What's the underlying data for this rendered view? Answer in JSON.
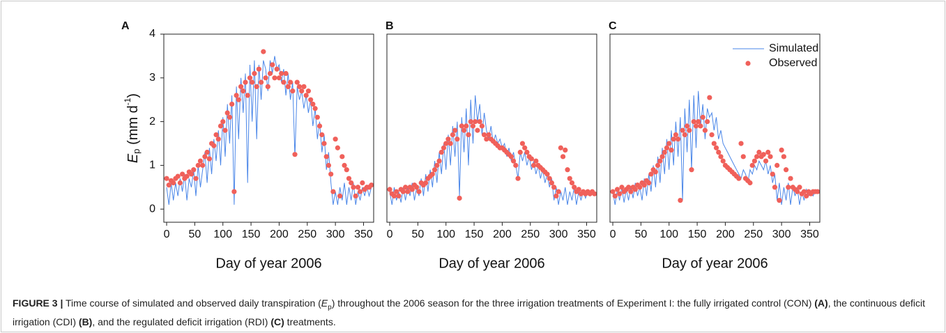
{
  "chart_data": [
    {
      "type": "line",
      "panel_label": "A",
      "xlabel": "Day of year 2006",
      "ylabel": [
        "E",
        "p",
        " (mm d",
        "-1",
        ")"
      ],
      "xlim": [
        -5,
        368
      ],
      "xticks": [
        0,
        50,
        100,
        150,
        200,
        250,
        300,
        350
      ],
      "ylim": [
        -0.3,
        4
      ],
      "yticks": [
        0,
        1,
        2,
        3,
        4
      ],
      "x": [
        0,
        4,
        8,
        12,
        16,
        20,
        24,
        28,
        32,
        36,
        40,
        44,
        48,
        52,
        56,
        60,
        64,
        68,
        72,
        76,
        80,
        84,
        88,
        92,
        96,
        100,
        104,
        108,
        112,
        116,
        120,
        124,
        128,
        132,
        136,
        140,
        144,
        148,
        152,
        156,
        160,
        164,
        168,
        172,
        176,
        180,
        184,
        188,
        192,
        196,
        200,
        204,
        208,
        212,
        216,
        220,
        224,
        228,
        232,
        236,
        240,
        244,
        248,
        252,
        256,
        260,
        264,
        268,
        272,
        276,
        280,
        284,
        288,
        292,
        296,
        300,
        304,
        308,
        312,
        316,
        320,
        324,
        328,
        332,
        336,
        340,
        344,
        348,
        352,
        356,
        360,
        364
      ],
      "series": [
        {
          "type": "line",
          "color": "#4a86e8",
          "values": [
            0.5,
            0.1,
            0.6,
            0.2,
            0.6,
            0.3,
            0.7,
            0.4,
            0.8,
            0.2,
            0.7,
            0.5,
            0.9,
            0.3,
            1.0,
            0.5,
            0.9,
            1.3,
            0.6,
            1.4,
            0.8,
            1.6,
            1.1,
            1.8,
            1.0,
            2.1,
            1.2,
            2.4,
            1.5,
            2.6,
            0.1,
            2.8,
            1.6,
            3.0,
            2.2,
            3.1,
            0.6,
            3.3,
            2.0,
            3.4,
            1.6,
            3.3,
            2.5,
            3.4,
            3.2,
            2.7,
            3.4,
            3.1,
            3.5,
            3.2,
            3.3,
            2.9,
            3.2,
            2.6,
            3.1,
            2.5,
            2.9,
            1.2,
            2.8,
            2.5,
            2.7,
            2.3,
            2.6,
            2.2,
            2.5,
            1.9,
            2.3,
            1.6,
            2.0,
            1.3,
            1.7,
            0.9,
            1.3,
            0.6,
            0.1,
            0.4,
            0.1,
            0.5,
            0.2,
            0.6,
            0.1,
            0.5,
            0.2,
            0.6,
            0.1,
            0.4,
            0.2,
            0.5,
            0.3,
            0.5,
            0.3,
            0.5
          ]
        },
        {
          "type": "scatter",
          "color": "#f0605a",
          "values": [
            0.7,
            0.55,
            0.65,
            0.6,
            0.7,
            0.75,
            0.6,
            0.8,
            0.7,
            0.75,
            0.85,
            0.8,
            0.9,
            0.7,
            1.0,
            1.1,
            1.0,
            1.2,
            1.3,
            1.15,
            1.5,
            1.45,
            1.7,
            1.6,
            1.9,
            2.0,
            1.8,
            2.2,
            2.1,
            2.4,
            0.4,
            2.6,
            2.5,
            2.8,
            2.7,
            2.9,
            2.6,
            3.0,
            2.9,
            3.1,
            2.8,
            3.2,
            2.9,
            3.6,
            3.0,
            2.8,
            3.1,
            3.3,
            3.0,
            3.2,
            3.0,
            3.1,
            2.9,
            3.1,
            2.8,
            2.9,
            2.7,
            1.25,
            2.9,
            2.8,
            2.7,
            2.8,
            2.6,
            2.7,
            2.5,
            2.4,
            2.3,
            2.1,
            1.9,
            1.7,
            1.5,
            1.2,
            1.0,
            0.8,
            0.4,
            1.6,
            1.4,
            0.3,
            1.2,
            1.0,
            0.9,
            0.7,
            0.6,
            0.5,
            0.3,
            0.5,
            0.4,
            0.6,
            0.45,
            0.5,
            0.5,
            0.55
          ]
        }
      ]
    },
    {
      "type": "line",
      "panel_label": "B",
      "xlabel": "Day of year 2006",
      "xlim": [
        -5,
        368
      ],
      "xticks": [
        0,
        50,
        100,
        150,
        200,
        250,
        300,
        350
      ],
      "ylim": [
        -0.3,
        4
      ],
      "x": [
        0,
        4,
        8,
        12,
        16,
        20,
        24,
        28,
        32,
        36,
        40,
        44,
        48,
        52,
        56,
        60,
        64,
        68,
        72,
        76,
        80,
        84,
        88,
        92,
        96,
        100,
        104,
        108,
        112,
        116,
        120,
        124,
        128,
        132,
        136,
        140,
        144,
        148,
        152,
        156,
        160,
        164,
        168,
        172,
        176,
        180,
        184,
        188,
        192,
        196,
        200,
        204,
        208,
        212,
        216,
        220,
        224,
        228,
        232,
        236,
        240,
        244,
        248,
        252,
        256,
        260,
        264,
        268,
        272,
        276,
        280,
        284,
        288,
        292,
        296,
        300,
        304,
        308,
        312,
        316,
        320,
        324,
        328,
        332,
        336,
        340,
        344,
        348,
        352,
        356,
        360,
        364
      ],
      "series": [
        {
          "type": "line",
          "color": "#4a86e8",
          "values": [
            0.4,
            0.1,
            0.5,
            0.2,
            0.4,
            0.15,
            0.5,
            0.2,
            0.5,
            0.3,
            0.6,
            0.2,
            0.5,
            0.3,
            0.7,
            0.3,
            0.8,
            0.4,
            0.9,
            0.5,
            1.1,
            0.6,
            1.3,
            0.8,
            1.5,
            0.9,
            1.7,
            1.0,
            1.9,
            1.2,
            2.0,
            0.3,
            2.1,
            1.3,
            2.3,
            1.0,
            2.5,
            1.5,
            2.6,
            2.0,
            2.4,
            1.7,
            2.2,
            1.8,
            1.6,
            1.9,
            1.5,
            1.7,
            1.5,
            1.6,
            1.4,
            1.5,
            1.2,
            1.4,
            1.1,
            1.3,
            1.0,
            0.7,
            1.3,
            1.1,
            1.3,
            1.0,
            1.2,
            0.9,
            1.1,
            0.8,
            1.0,
            0.7,
            0.9,
            0.6,
            0.8,
            0.5,
            0.7,
            0.2,
            0.5,
            0.1,
            0.4,
            0.2,
            0.5,
            0.1,
            0.4,
            0.2,
            0.5,
            0.1,
            0.4,
            0.2,
            0.4,
            0.25,
            0.4,
            0.3,
            0.4,
            0.35
          ]
        },
        {
          "type": "scatter",
          "color": "#f0605a",
          "values": [
            0.45,
            0.35,
            0.3,
            0.4,
            0.3,
            0.45,
            0.4,
            0.5,
            0.4,
            0.5,
            0.45,
            0.55,
            0.5,
            0.4,
            0.6,
            0.55,
            0.6,
            0.7,
            0.75,
            0.8,
            0.9,
            1.0,
            1.1,
            1.3,
            1.4,
            1.5,
            1.6,
            1.5,
            1.7,
            1.8,
            1.6,
            0.25,
            1.9,
            1.8,
            1.9,
            1.7,
            2.0,
            1.9,
            2.0,
            1.8,
            2.0,
            1.9,
            1.7,
            1.6,
            1.7,
            1.6,
            1.55,
            1.5,
            1.45,
            1.4,
            1.4,
            1.35,
            1.3,
            1.25,
            1.2,
            1.1,
            1.0,
            0.7,
            1.3,
            1.5,
            1.4,
            1.3,
            1.2,
            1.15,
            1.0,
            1.1,
            1.0,
            0.95,
            0.9,
            0.85,
            0.8,
            0.7,
            0.6,
            0.5,
            0.3,
            0.4,
            1.4,
            1.2,
            1.35,
            0.9,
            0.7,
            0.6,
            0.5,
            0.4,
            0.45,
            0.35,
            0.4,
            0.35,
            0.4,
            0.35,
            0.4,
            0.35
          ]
        }
      ]
    },
    {
      "type": "line",
      "panel_label": "C",
      "xlabel": "Day of year 2006",
      "xlim": [
        -5,
        368
      ],
      "xticks": [
        0,
        50,
        100,
        150,
        200,
        250,
        300,
        350
      ],
      "ylim": [
        -0.3,
        4
      ],
      "legend": "upper right",
      "x": [
        0,
        4,
        8,
        12,
        16,
        20,
        24,
        28,
        32,
        36,
        40,
        44,
        48,
        52,
        56,
        60,
        64,
        68,
        72,
        76,
        80,
        84,
        88,
        92,
        96,
        100,
        104,
        108,
        112,
        116,
        120,
        124,
        128,
        132,
        136,
        140,
        144,
        148,
        152,
        156,
        160,
        164,
        168,
        172,
        176,
        180,
        184,
        188,
        192,
        196,
        200,
        204,
        208,
        212,
        216,
        220,
        224,
        228,
        232,
        236,
        240,
        244,
        248,
        252,
        256,
        260,
        264,
        268,
        272,
        276,
        280,
        284,
        288,
        292,
        296,
        300,
        304,
        308,
        312,
        316,
        320,
        324,
        328,
        332,
        336,
        340,
        344,
        348,
        352,
        356,
        360,
        364
      ],
      "series": [
        {
          "type": "line",
          "name": "Simulated",
          "color": "#4a86e8",
          "values": [
            0.4,
            0.1,
            0.45,
            0.2,
            0.5,
            0.15,
            0.45,
            0.2,
            0.5,
            0.25,
            0.6,
            0.3,
            0.5,
            0.2,
            0.7,
            0.3,
            0.8,
            0.4,
            1.0,
            0.5,
            1.2,
            0.6,
            1.4,
            0.8,
            1.6,
            0.9,
            1.8,
            1.0,
            2.0,
            1.2,
            2.1,
            0.2,
            2.3,
            1.3,
            2.5,
            0.9,
            2.6,
            1.4,
            2.7,
            1.9,
            2.4,
            1.6,
            2.3,
            2.1,
            2.2,
            1.8,
            2.1,
            1.6,
            1.8,
            1.5,
            1.4,
            1.3,
            1.2,
            1.1,
            1.0,
            0.9,
            0.8,
            0.7,
            0.9,
            0.8,
            0.6,
            0.9,
            0.8,
            1.0,
            0.9,
            1.1,
            1.0,
            0.9,
            1.1,
            0.8,
            1.0,
            0.6,
            0.8,
            0.2,
            0.6,
            0.1,
            0.5,
            0.2,
            0.6,
            0.1,
            0.5,
            0.3,
            0.5,
            0.1,
            0.4,
            0.2,
            0.45,
            0.3,
            0.4,
            0.3,
            0.4,
            0.4
          ]
        },
        {
          "type": "scatter",
          "name": "Observed",
          "color": "#f0605a",
          "values": [
            0.4,
            0.3,
            0.45,
            0.35,
            0.5,
            0.4,
            0.45,
            0.5,
            0.4,
            0.5,
            0.45,
            0.55,
            0.5,
            0.6,
            0.55,
            0.65,
            0.6,
            0.8,
            0.9,
            0.85,
            1.0,
            1.1,
            1.2,
            1.3,
            1.4,
            1.5,
            1.35,
            1.6,
            1.7,
            1.6,
            0.2,
            1.8,
            1.7,
            1.9,
            1.8,
            0.9,
            2.0,
            1.9,
            2.0,
            1.9,
            2.1,
            1.8,
            2.0,
            2.55,
            1.7,
            1.5,
            1.4,
            1.3,
            1.2,
            1.1,
            1.0,
            0.95,
            0.9,
            0.85,
            0.8,
            0.75,
            0.7,
            1.5,
            1.2,
            0.7,
            0.65,
            0.6,
            1.0,
            1.1,
            1.2,
            1.3,
            1.2,
            1.25,
            1.1,
            1.3,
            1.2,
            0.8,
            0.5,
            1.0,
            0.2,
            1.35,
            1.2,
            0.9,
            0.5,
            0.7,
            0.5,
            0.45,
            0.4,
            0.5,
            0.35,
            0.4,
            0.3,
            0.4,
            0.35,
            0.4,
            0.4,
            0.4
          ]
        }
      ]
    }
  ],
  "caption": {
    "label": "FIGURE 3 |",
    "parts": [
      "Time course of simulated and observed daily transpiration (",
      "E",
      "p",
      ") throughout the 2006 season for the three irrigation treatments of Experiment I: the fully irrigated control (CON) ",
      "(A)",
      ", the continuous deficit irrigation (CDI) ",
      "(B)",
      ", and the regulated deficit irrigation (RDI) ",
      "(C)",
      " treatments."
    ]
  }
}
